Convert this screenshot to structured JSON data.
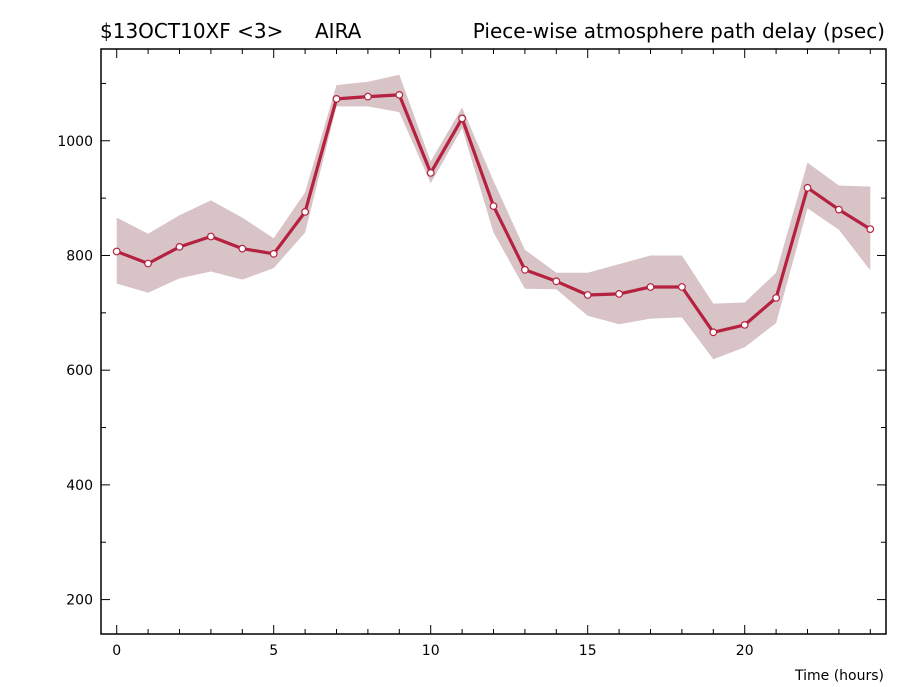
{
  "header": {
    "experiment": "$13OCT10XF <3>",
    "station": "AIRA",
    "title": "Piece-wise atmosphere path delay (psec)"
  },
  "chart_data": {
    "type": "line",
    "title": "Piece-wise atmosphere path delay (psec)",
    "xlabel": "Time (hours)",
    "ylabel": "",
    "xlim": [
      -0.5,
      24.5
    ],
    "ylim": [
      140,
      1160
    ],
    "x_ticks": [
      0,
      5,
      10,
      15,
      20
    ],
    "y_ticks": [
      200,
      400,
      600,
      800,
      1000
    ],
    "grid": false,
    "colors": {
      "line": "#b5223f",
      "band": "#d8c3c7",
      "marker_fill": "#ffffff"
    },
    "series": [
      {
        "x": [
          0,
          1,
          2,
          3,
          4,
          5,
          6,
          7,
          8,
          9,
          10,
          11,
          12,
          13,
          14,
          15,
          16,
          17,
          18,
          19,
          20,
          21,
          22,
          23,
          24
        ],
        "values": [
          807,
          786,
          815,
          833,
          812,
          803,
          876,
          1073,
          1077,
          1080,
          944,
          1039,
          886,
          775,
          755,
          731,
          733,
          745,
          745,
          666,
          679,
          726,
          918,
          880,
          846
        ],
        "upper": [
          866,
          838,
          870,
          896,
          866,
          830,
          910,
          1097,
          1103,
          1115,
          964,
          1058,
          930,
          810,
          770,
          770,
          785,
          800,
          800,
          716,
          718,
          770,
          962,
          922,
          920
        ],
        "lower": [
          751,
          735,
          760,
          772,
          758,
          778,
          840,
          1060,
          1060,
          1050,
          926,
          1022,
          840,
          742,
          741,
          695,
          680,
          690,
          692,
          619,
          640,
          682,
          882,
          845,
          774
        ]
      }
    ]
  }
}
